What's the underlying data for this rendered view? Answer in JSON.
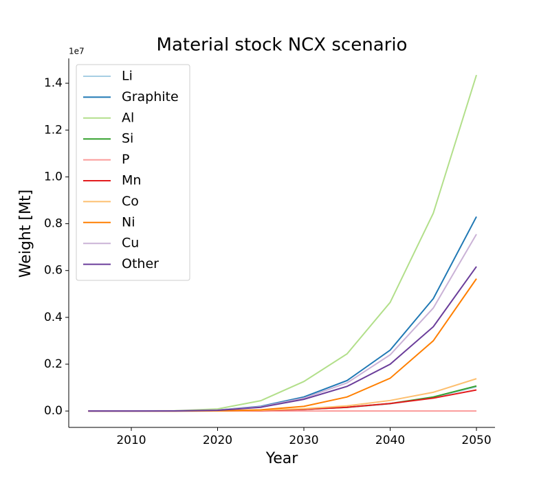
{
  "chart_data": {
    "type": "line",
    "title": "Material stock NCX scenario",
    "xlabel": "Year",
    "ylabel": "Weight [Mt]",
    "y_offset_label": "1e7",
    "x": [
      2005,
      2010,
      2015,
      2020,
      2025,
      2030,
      2035,
      2040,
      2045,
      2050
    ],
    "series": [
      {
        "name": "Li",
        "color": "#a6cee3",
        "values": [
          0,
          0,
          0,
          0.0004,
          0.002,
          0.007,
          0.015,
          0.031,
          0.058,
          0.103
        ]
      },
      {
        "name": "Graphite",
        "color": "#1f78b4",
        "values": [
          0,
          0,
          0.0005,
          0.004,
          0.02,
          0.06,
          0.13,
          0.26,
          0.48,
          0.83
        ]
      },
      {
        "name": "Al",
        "color": "#b2df8a",
        "values": [
          0,
          0,
          0.001,
          0.009,
          0.044,
          0.126,
          0.244,
          0.464,
          0.845,
          1.435
        ]
      },
      {
        "name": "Si",
        "color": "#33a02c",
        "values": [
          0,
          0,
          0,
          0.0004,
          0.002,
          0.007,
          0.016,
          0.032,
          0.06,
          0.107
        ]
      },
      {
        "name": "P",
        "color": "#fb9a99",
        "values": [
          0,
          0,
          0,
          0,
          0,
          0,
          0,
          0,
          0,
          0
        ]
      },
      {
        "name": "Mn",
        "color": "#e31a1c",
        "values": [
          0,
          0,
          0,
          0.0004,
          0.002,
          0.007,
          0.016,
          0.032,
          0.055,
          0.09
        ]
      },
      {
        "name": "Co",
        "color": "#fdbf6f",
        "values": [
          0,
          0,
          0,
          0.0005,
          0.003,
          0.01,
          0.022,
          0.045,
          0.08,
          0.138
        ]
      },
      {
        "name": "Ni",
        "color": "#ff7f00",
        "values": [
          0,
          0,
          0,
          0.001,
          0.005,
          0.02,
          0.06,
          0.14,
          0.3,
          0.565
        ]
      },
      {
        "name": "Cu",
        "color": "#cab2d6",
        "values": [
          0,
          0,
          0.0005,
          0.004,
          0.018,
          0.055,
          0.12,
          0.24,
          0.44,
          0.755
        ]
      },
      {
        "name": "Other",
        "color": "#6a3d9a",
        "values": [
          0,
          0,
          0.0004,
          0.003,
          0.016,
          0.05,
          0.105,
          0.2,
          0.36,
          0.617
        ]
      }
    ],
    "xlim": [
      2002.75,
      2052.15
    ],
    "ylim": [
      -0.07,
      1.506
    ],
    "xticks": [
      2010,
      2020,
      2030,
      2040,
      2050
    ],
    "yticks": [
      {
        "value": 0,
        "label": "0.0"
      },
      0.2,
      0.4,
      0.6,
      0.8,
      {
        "value": 1,
        "label": "1.0"
      },
      1.2,
      1.4
    ],
    "grid": false,
    "legend": "upper left"
  }
}
